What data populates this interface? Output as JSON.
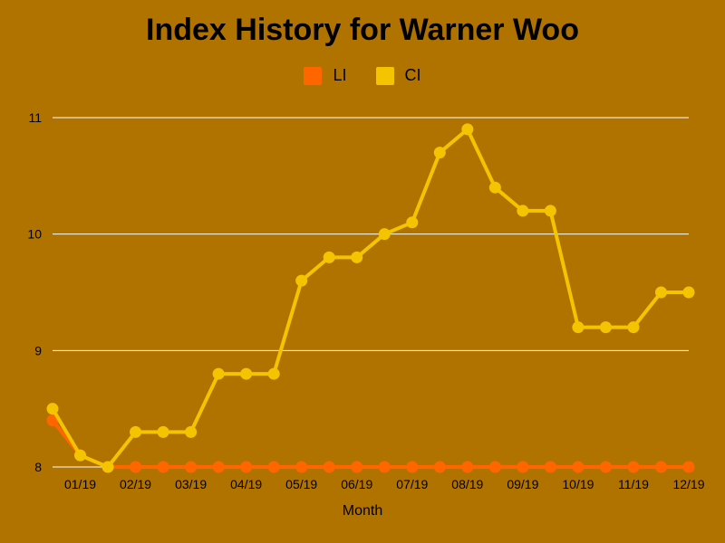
{
  "chart_data": {
    "type": "line",
    "title": "Index History for Warner Woo",
    "xlabel": "Month",
    "ylabel": "",
    "ylim": [
      8,
      11
    ],
    "yticks": [
      8,
      9,
      10,
      11
    ],
    "grid": true,
    "legend_position": "top-center",
    "x_tick_labels": [
      "01/19",
      "02/19",
      "03/19",
      "04/19",
      "05/19",
      "06/19",
      "07/19",
      "08/19",
      "09/19",
      "10/19",
      "11/19",
      "12/19"
    ],
    "series": [
      {
        "name": "LI",
        "color": "#ff6600",
        "values": [
          8.4,
          8.1,
          8.0,
          8.0,
          8.0,
          8.0,
          8.0,
          8.0,
          8.0,
          8.0,
          8.0,
          8.0,
          8.0,
          8.0,
          8.0,
          8.0,
          8.0,
          8.0,
          8.0,
          8.0,
          8.0,
          8.0,
          8.0,
          8.0
        ]
      },
      {
        "name": "CI",
        "color": "#f5c400",
        "values": [
          8.5,
          8.1,
          8.0,
          8.3,
          8.3,
          8.3,
          8.8,
          8.8,
          8.8,
          9.6,
          9.8,
          9.8,
          10.0,
          10.1,
          10.7,
          10.9,
          10.4,
          10.2,
          10.2,
          9.2,
          9.2,
          9.2,
          9.5,
          9.5
        ]
      }
    ]
  }
}
